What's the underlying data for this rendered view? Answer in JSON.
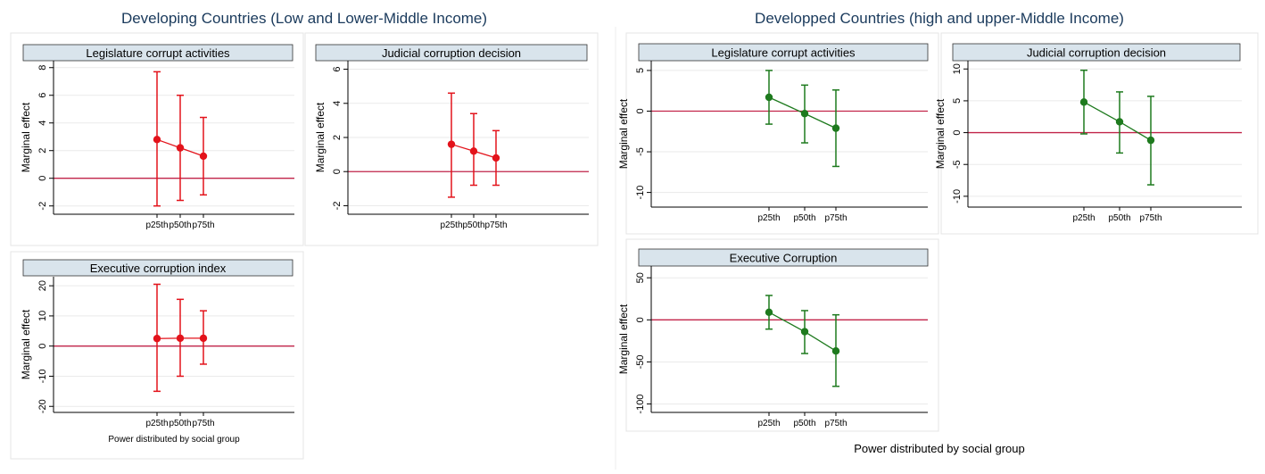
{
  "groups": [
    {
      "title": "Developing Countries (Low and Lower-Middle Income)"
    },
    {
      "title": "Developped Countries (high and upper-Middle Income)",
      "x_label": "Power distributed by social group"
    }
  ],
  "chart_data": [
    {
      "type": "errorbar",
      "title": "Legislature corrupt activities",
      "y_label": "Marginal effect",
      "categories": [
        "p25th",
        "p50th",
        "p75th"
      ],
      "values": [
        2.8,
        2.2,
        1.6
      ],
      "lower": [
        -2.0,
        -1.6,
        -1.2
      ],
      "upper": [
        7.7,
        6.0,
        4.4
      ],
      "color": "#e3131b",
      "ref_line": 0,
      "ref_color": "#c2244a",
      "ylim": [
        -2.6,
        8.5
      ],
      "yticks": [
        -2,
        0,
        2,
        4,
        6,
        8
      ],
      "grid": true
    },
    {
      "type": "errorbar",
      "title": "Judicial corruption decision",
      "y_label": "Marginal effect",
      "categories": [
        "p25th",
        "p50th",
        "p75th"
      ],
      "values": [
        1.6,
        1.2,
        0.8
      ],
      "lower": [
        -1.5,
        -0.8,
        -0.8
      ],
      "upper": [
        4.6,
        3.4,
        2.4
      ],
      "color": "#e3131b",
      "ref_line": 0,
      "ref_color": "#c2244a",
      "ylim": [
        -2.5,
        6.5
      ],
      "yticks": [
        -2,
        0,
        2,
        4,
        6
      ],
      "grid": true
    },
    {
      "type": "errorbar",
      "title": "Executive corruption index",
      "y_label": "Marginal effect",
      "x_label": "Power distributed by social group",
      "categories": [
        "p25th",
        "p50th",
        "p75th"
      ],
      "values": [
        2.5,
        2.6,
        2.6
      ],
      "lower": [
        -15,
        -10,
        -6
      ],
      "upper": [
        20.5,
        15.5,
        11.7
      ],
      "color": "#e3131b",
      "ref_line": 0,
      "ref_color": "#c2244a",
      "ylim": [
        -22,
        23
      ],
      "yticks": [
        -20,
        -10,
        0,
        10,
        20
      ],
      "grid": true
    },
    {
      "type": "errorbar",
      "title": "Legislature corrupt activities",
      "y_label": "Marginal effect",
      "categories": [
        "p25th",
        "p50th",
        "p75th"
      ],
      "values": [
        1.7,
        -0.3,
        -2.1
      ],
      "lower": [
        -1.6,
        -3.9,
        -6.8
      ],
      "upper": [
        5.0,
        3.2,
        2.6
      ],
      "color": "#1e7a1e",
      "ref_line": 0,
      "ref_color": "#c2244a",
      "ylim": [
        -11.8,
        6.2
      ],
      "yticks": [
        -10,
        -5,
        0,
        5
      ],
      "grid": true
    },
    {
      "type": "errorbar",
      "title": "Judicial corruption decision",
      "y_label": "Marginal effect",
      "categories": [
        "p25th",
        "p50th",
        "p75th"
      ],
      "values": [
        4.8,
        1.7,
        -1.2
      ],
      "lower": [
        -0.2,
        -3.2,
        -8.2
      ],
      "upper": [
        9.8,
        6.4,
        5.7
      ],
      "color": "#1e7a1e",
      "ref_line": 0,
      "ref_color": "#c2244a",
      "ylim": [
        -11.7,
        11.3
      ],
      "yticks": [
        -10,
        -5,
        0,
        5,
        10
      ],
      "grid": true
    },
    {
      "type": "errorbar",
      "title": "Executive Corruption",
      "y_label": "Marginal effect",
      "categories": [
        "p25th",
        "p50th",
        "p75th"
      ],
      "values": [
        9,
        -14,
        -37
      ],
      "lower": [
        -11,
        -40,
        -79
      ],
      "upper": [
        29,
        11,
        6
      ],
      "color": "#1e7a1e",
      "ref_line": 0,
      "ref_color": "#c2244a",
      "ylim": [
        -110,
        64
      ],
      "yticks": [
        -100,
        -50,
        0,
        50
      ],
      "grid": true
    }
  ]
}
